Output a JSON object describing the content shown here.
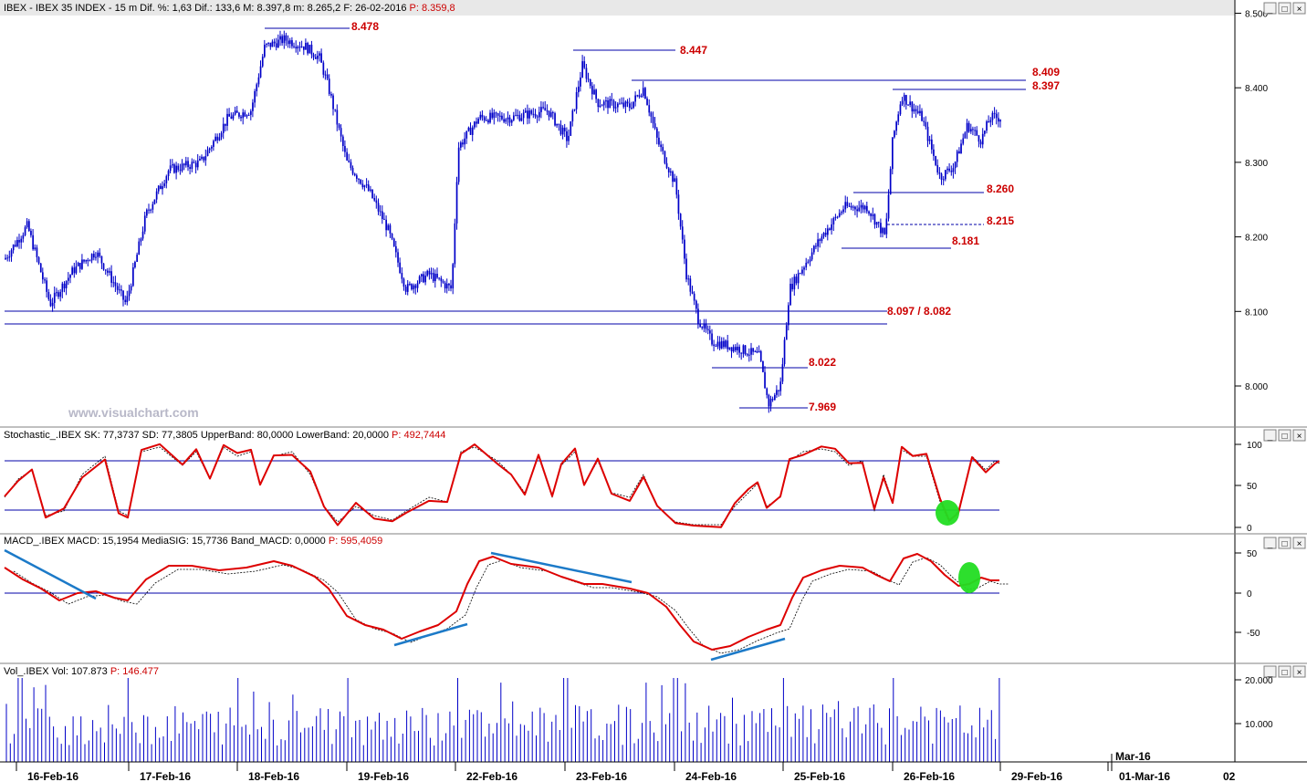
{
  "colors": {
    "candle": "#0000c8",
    "hline": "#0000aa",
    "label": "#cc0000",
    "sk": "#dd0000",
    "sd": "#000000",
    "trend": "#1c7ac8",
    "marker": "#22dd22",
    "header_bg": "#e8e8e8"
  },
  "header": {
    "prefix": "IBEX - IBEX 35 INDEX - 15 m  Dif. %: 1,63  Dif.: 133,6  M: 8.397,8  m: 8.265,2  F: 26-02-2016  ",
    "price": "P: 8.359,8"
  },
  "watermark": "www.visualchart.com",
  "window_controls": [
    "_",
    "□",
    "×"
  ],
  "price_panel": {
    "y_ticks": [
      "8.500",
      "8.400",
      "8.300",
      "8.200",
      "8.100",
      "8.000"
    ],
    "levels": [
      {
        "text": "8.478",
        "value": 8478
      },
      {
        "text": "8.447",
        "value": 8447
      },
      {
        "text": "8.409",
        "value": 8409
      },
      {
        "text": "8.397",
        "value": 8397
      },
      {
        "text": "8.260",
        "value": 8260
      },
      {
        "text": "8.215",
        "value": 8215
      },
      {
        "text": "8.181",
        "value": 8181
      },
      {
        "text": "8.097 / 8.082",
        "value": 8097
      },
      {
        "text": "8.022",
        "value": 8022
      },
      {
        "text": "7.969",
        "value": 7969
      }
    ]
  },
  "stoch_panel": {
    "title_black": "Stochastic_.IBEX SK: 77,3737  SD: 77,3805  UpperBand: 80,0000  LowerBand: 20,0000  ",
    "title_red": "P: 492,7444",
    "y_ticks": [
      "100",
      "50",
      "0"
    ]
  },
  "macd_panel": {
    "title_black": "MACD_.IBEX MACD: 15,1954  MediaSIG: 15,7736  Band_MACD: 0,0000  ",
    "title_red": "P: 595,4059",
    "y_ticks": [
      "50",
      "0",
      "-50"
    ]
  },
  "vol_panel": {
    "title_black": "Vol_.IBEX Vol: 107.873  ",
    "title_red": "P: 146.477",
    "y_ticks": [
      "20.000",
      "10.000"
    ]
  },
  "x_axis": {
    "dates": [
      "16-Feb-16",
      "17-Feb-16",
      "18-Feb-16",
      "19-Feb-16",
      "22-Feb-16",
      "23-Feb-16",
      "24-Feb-16",
      "25-Feb-16",
      "26-Feb-16",
      "29-Feb-16",
      "01-Mar-16"
    ],
    "extra": "Mar-16",
    "edge_right": "02"
  },
  "chart_data": {
    "type": "candlestick",
    "symbol": "IBEX 35 INDEX",
    "interval": "15 m",
    "ylim": [
      7920,
      8500
    ],
    "key_points": [
      {
        "day": "16-Feb-16",
        "value": 8170
      },
      {
        "day": "16-Feb-16",
        "value": 8110
      },
      {
        "day": "17-Feb-16",
        "value": 8120
      },
      {
        "day": "17-Feb-16",
        "value": 8290
      },
      {
        "day": "18-Feb-16",
        "value": 8460
      },
      {
        "day": "18-Feb-16",
        "value": 8440
      },
      {
        "day": "19-Feb-16",
        "value": 8300
      },
      {
        "day": "19-Feb-16",
        "value": 8130
      },
      {
        "day": "22-Feb-16",
        "value": 8320
      },
      {
        "day": "22-Feb-16",
        "value": 8370
      },
      {
        "day": "23-Feb-16",
        "value": 8430
      },
      {
        "day": "23-Feb-16",
        "value": 8380
      },
      {
        "day": "24-Feb-16",
        "value": 8220
      },
      {
        "day": "24-Feb-16",
        "value": 8080
      },
      {
        "day": "24-Feb-16",
        "value": 8040
      },
      {
        "day": "25-Feb-16",
        "value": 7980
      },
      {
        "day": "25-Feb-16",
        "value": 8130
      },
      {
        "day": "25-Feb-16",
        "value": 8240
      },
      {
        "day": "26-Feb-16",
        "value": 8390
      },
      {
        "day": "26-Feb-16",
        "value": 8280
      },
      {
        "day": "26-Feb-16",
        "value": 8360
      }
    ],
    "stochastic": {
      "SK": 77.3737,
      "SD": 77.3805,
      "upper": 80,
      "lower": 20,
      "ylim": [
        0,
        100
      ]
    },
    "macd": {
      "MACD": 15.1954,
      "MediaSIG": 15.7736,
      "band": 0,
      "ylim": [
        -70,
        55
      ]
    },
    "volume": {
      "last": 107873,
      "ylim": [
        0,
        20000
      ]
    }
  }
}
